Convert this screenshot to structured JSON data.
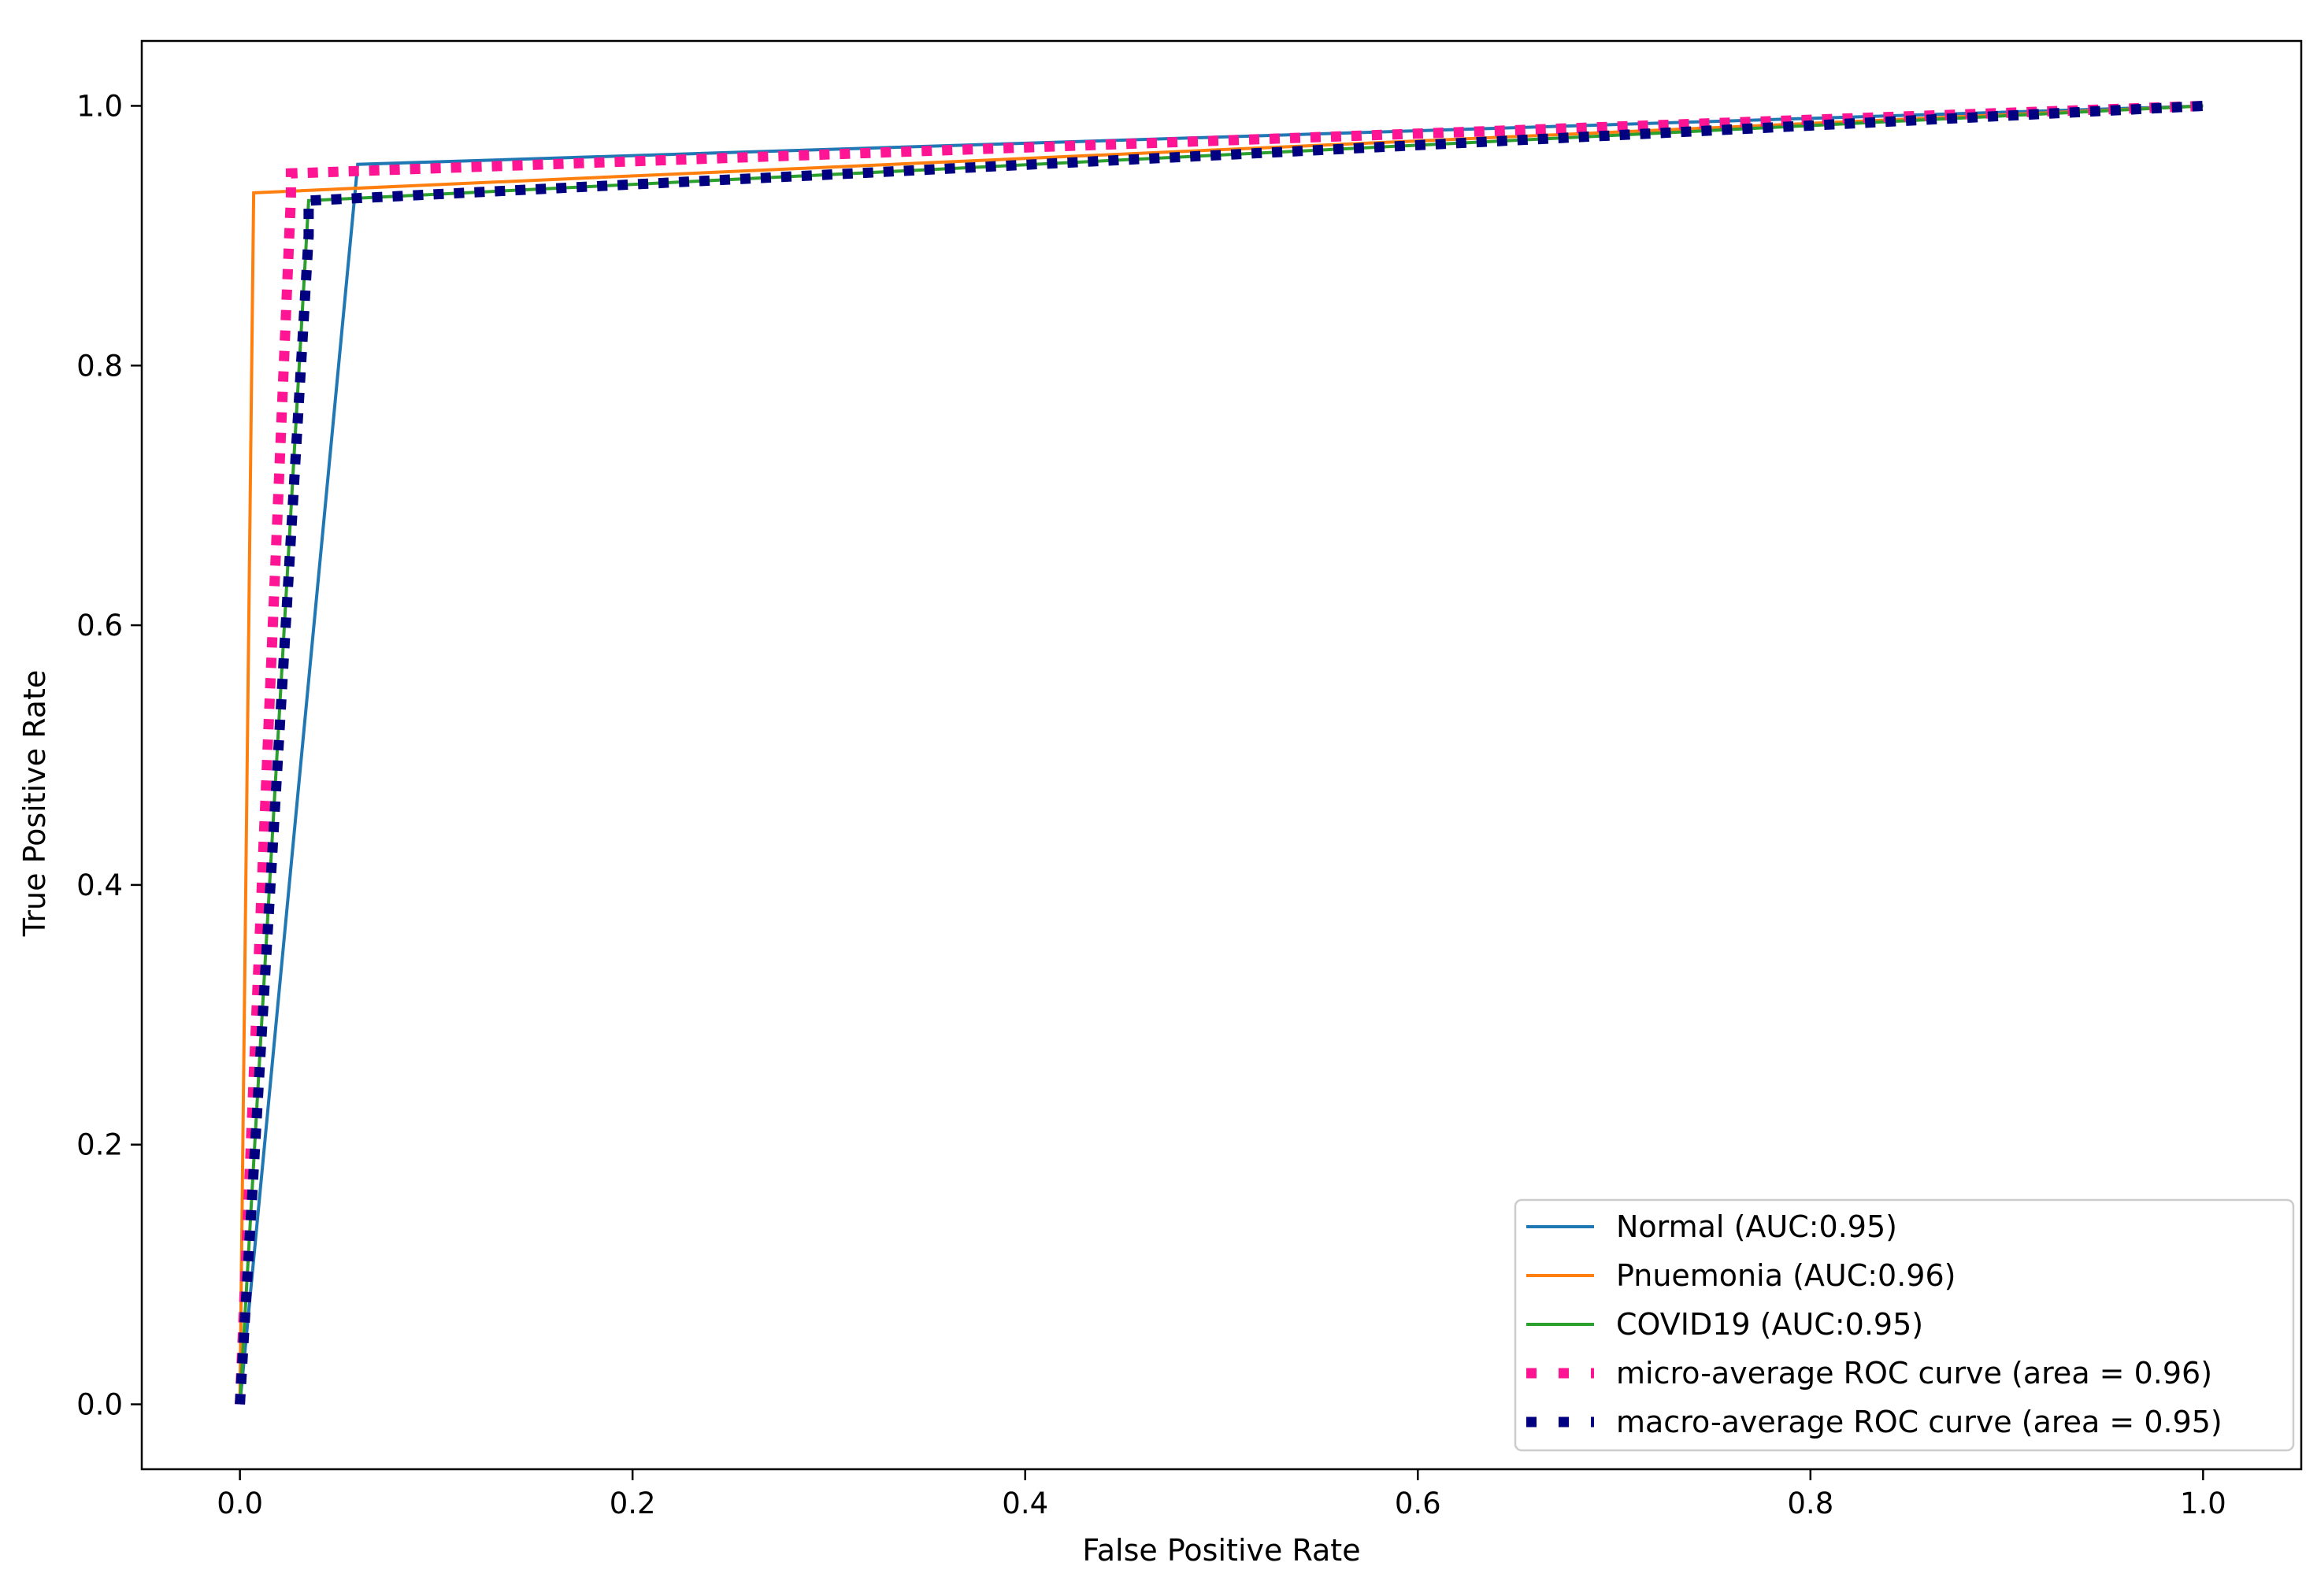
{
  "chart_data": {
    "type": "line",
    "title": "",
    "xlabel": "False Positive Rate",
    "ylabel": "True Positive Rate",
    "xlim": [
      -0.05,
      1.05
    ],
    "ylim": [
      -0.05,
      1.05
    ],
    "xticks": [
      "0.0",
      "0.2",
      "0.4",
      "0.6",
      "0.8",
      "1.0"
    ],
    "yticks": [
      "0.0",
      "0.2",
      "0.4",
      "0.6",
      "0.8",
      "1.0"
    ],
    "grid": false,
    "legend_position": "lower-right",
    "series": [
      {
        "name": "Normal (AUC:0.95)",
        "color": "#1f77b4",
        "style": "solid",
        "x": [
          0.0,
          0.06,
          1.0
        ],
        "y": [
          0.0,
          0.955,
          1.0
        ]
      },
      {
        "name": "Pnuemonia (AUC:0.96)",
        "color": "#ff7f0e",
        "style": "solid",
        "x": [
          0.0,
          0.007,
          1.0
        ],
        "y": [
          0.0,
          0.933,
          1.0
        ]
      },
      {
        "name": "COVID19 (AUC:0.95)",
        "color": "#2ca02c",
        "style": "solid",
        "x": [
          0.0,
          0.035,
          1.0
        ],
        "y": [
          0.0,
          0.927,
          1.0
        ]
      },
      {
        "name": "micro-average ROC curve (area = 0.96)",
        "color": "#ff1493",
        "style": "dotted",
        "x": [
          0.0,
          0.026,
          0.026,
          1.0
        ],
        "y": [
          0.0,
          0.93,
          0.948,
          1.0
        ]
      },
      {
        "name": "macro-average ROC curve (area = 0.95)",
        "color": "#000080",
        "style": "dotted",
        "x": [
          0.0,
          0.035,
          0.035,
          1.0
        ],
        "y": [
          0.0,
          0.9,
          0.927,
          1.0
        ]
      }
    ]
  }
}
